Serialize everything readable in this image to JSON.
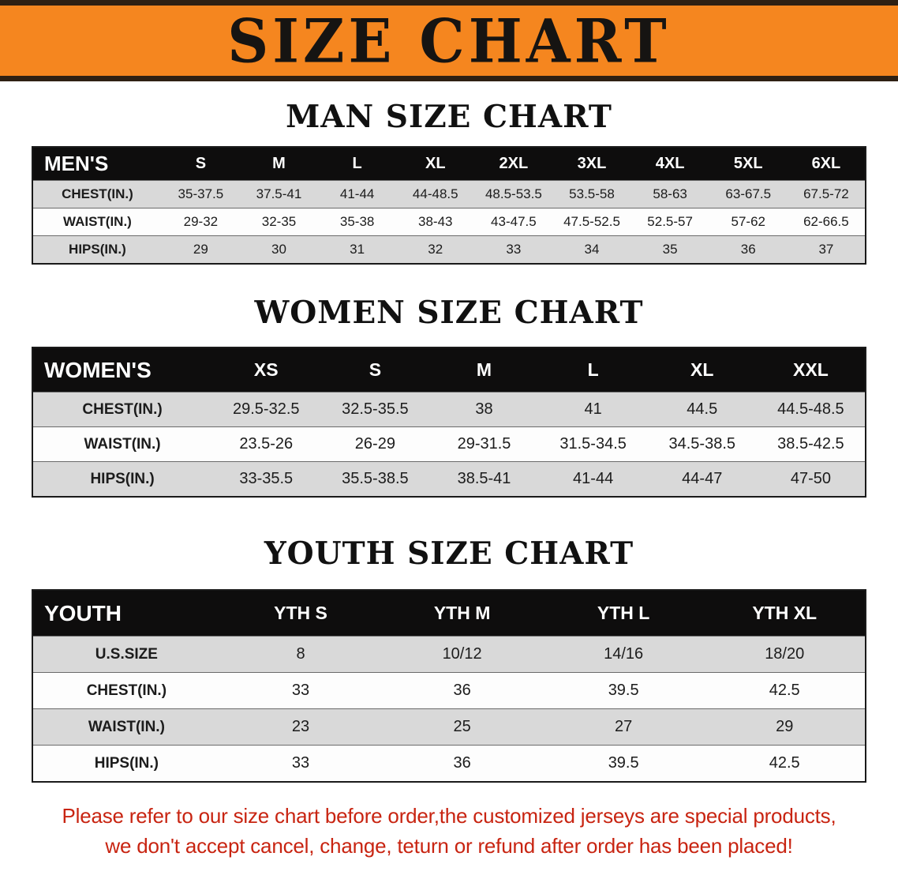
{
  "banner": {
    "title": "SIZE CHART",
    "bg_color": "#f5861f",
    "border_color": "#2e2013"
  },
  "sections": [
    {
      "heading": "MAN SIZE CHART",
      "table": {
        "label": "MEN'S",
        "columns": [
          "S",
          "M",
          "L",
          "XL",
          "2XL",
          "3XL",
          "4XL",
          "5XL",
          "6XL"
        ],
        "rows": [
          {
            "label": "CHEST(IN.)",
            "values": [
              "35-37.5",
              "37.5-41",
              "41-44",
              "44-48.5",
              "48.5-53.5",
              "53.5-58",
              "58-63",
              "63-67.5",
              "67.5-72"
            ]
          },
          {
            "label": "WAIST(IN.)",
            "values": [
              "29-32",
              "32-35",
              "35-38",
              "38-43",
              "43-47.5",
              "47.5-52.5",
              "52.5-57",
              "57-62",
              "62-66.5"
            ]
          },
          {
            "label": "HIPS(IN.)",
            "values": [
              "29",
              "30",
              "31",
              "32",
              "33",
              "34",
              "35",
              "36",
              "37"
            ]
          }
        ]
      }
    },
    {
      "heading": "WOMEN SIZE CHART",
      "table": {
        "label": "WOMEN'S",
        "columns": [
          "XS",
          "S",
          "M",
          "L",
          "XL",
          "XXL"
        ],
        "rows": [
          {
            "label": "CHEST(IN.)",
            "values": [
              "29.5-32.5",
              "32.5-35.5",
              "38",
              "41",
              "44.5",
              "44.5-48.5"
            ]
          },
          {
            "label": "WAIST(IN.)",
            "values": [
              "23.5-26",
              "26-29",
              "29-31.5",
              "31.5-34.5",
              "34.5-38.5",
              "38.5-42.5"
            ]
          },
          {
            "label": "HIPS(IN.)",
            "values": [
              "33-35.5",
              "35.5-38.5",
              "38.5-41",
              "41-44",
              "44-47",
              "47-50"
            ]
          }
        ]
      }
    },
    {
      "heading": "YOUTH SIZE CHART",
      "table": {
        "label": "YOUTH",
        "columns": [
          "YTH S",
          "YTH M",
          "YTH L",
          "YTH XL"
        ],
        "rows": [
          {
            "label": "U.S.SIZE",
            "values": [
              "8",
              "10/12",
              "14/16",
              "18/20"
            ]
          },
          {
            "label": "CHEST(IN.)",
            "values": [
              "33",
              "36",
              "39.5",
              "42.5"
            ]
          },
          {
            "label": "WAIST(IN.)",
            "values": [
              "23",
              "25",
              "27",
              "29"
            ]
          },
          {
            "label": "HIPS(IN.)",
            "values": [
              "33",
              "36",
              "39.5",
              "42.5"
            ]
          }
        ]
      }
    }
  ],
  "footer": {
    "line1": "Please refer to our size chart before order,the customized jerseys are special products,",
    "line2": "we don't accept cancel, change, teturn or refund after order has been placed!",
    "text_color": "#c82411"
  }
}
